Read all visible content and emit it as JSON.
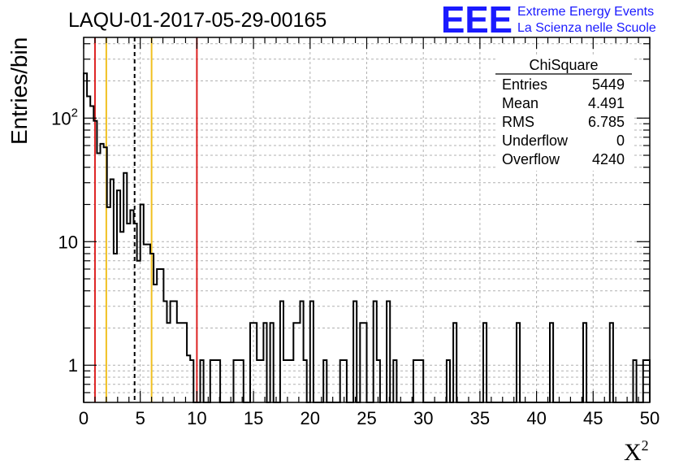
{
  "chart_data": {
    "type": "bar",
    "title": "LAQU-01-2017-05-29-00165",
    "xlabel": "X",
    "xlabel_superscript": "2",
    "ylabel": "Entries/bin",
    "xlim": [
      0,
      50
    ],
    "ylim": [
      0.5,
      450
    ],
    "yscale": "log",
    "grid": true,
    "bin_width": 1,
    "x_ticks": [
      "0",
      "5",
      "10",
      "15",
      "20",
      "25",
      "30",
      "35",
      "40",
      "45",
      "50"
    ],
    "y_ticks": [
      {
        "value": 1,
        "base": "1",
        "exp": ""
      },
      {
        "value": 10,
        "base": "10",
        "exp": ""
      },
      {
        "value": 100,
        "base": "10",
        "exp": "2"
      }
    ],
    "bin_values": [
      230,
      150,
      125,
      95,
      52,
      62,
      58,
      19,
      32,
      8,
      26,
      12,
      36,
      14,
      18,
      14,
      7,
      20,
      9.5,
      9.5,
      8,
      4.5,
      6,
      6,
      3.3,
      2.2,
      3.3,
      3.3,
      2.2,
      2.2,
      2.2,
      1.2,
      1.1,
      0.4,
      0.4,
      1.1,
      0.4,
      0.4,
      1.1,
      1.1,
      1.1,
      0.4,
      0.4,
      0.4,
      0.4,
      1.1,
      1.1,
      1.1,
      0.4,
      0.4,
      2.2,
      2.2,
      1.1,
      1.1,
      2.2,
      0.4,
      2.2,
      0.4,
      0.4,
      3.3,
      1.1,
      1.1,
      1.1,
      2.2,
      2.2,
      3.3,
      1.1,
      0.4,
      3.3,
      0.4,
      0.4,
      0.4,
      1.1,
      0.4,
      0.4,
      0.4,
      0.4,
      1.1,
      1.1,
      0.4,
      0.4,
      3.3,
      0.4,
      2.2,
      2.2,
      0.4,
      0.4,
      3.3,
      1.1,
      0.4,
      0.4,
      3.3,
      0.4,
      1.1,
      0.4,
      0.4,
      0.4,
      0.4,
      0.4,
      1.1,
      1.1,
      1.1,
      0.4,
      0.4,
      0.4,
      0.4,
      0.4,
      0.4,
      0.4,
      1.1,
      0.4,
      2.2,
      0.4,
      0.4,
      0.4,
      0.4,
      0.4,
      0.4,
      0.4,
      0.4,
      2.2,
      0.4,
      0.4,
      0.4,
      0.4,
      0.4,
      0.4,
      0.4,
      0.4,
      0.4,
      2.2,
      0.4,
      0.4,
      0.4,
      0.4,
      0.4,
      0.4,
      0.4,
      0.4,
      0.4,
      2.2,
      0.4,
      0.4,
      0.4,
      0.4,
      0.4,
      0.4,
      0.4,
      0.4,
      0.4,
      2.2,
      0.4,
      0.4,
      0.4,
      0.4,
      0.4,
      0.4,
      0.4,
      2.2,
      0.4,
      0.4,
      0.4,
      0.4,
      0.4,
      0.4,
      1.1,
      0.4,
      0.4,
      1.1,
      1.1
    ],
    "vertical_lines": [
      {
        "x": 1.0,
        "color": "#dd2222",
        "style": "solid"
      },
      {
        "x": 2.0,
        "color": "#f0c020",
        "style": "solid"
      },
      {
        "x": 4.5,
        "color": "#000000",
        "style": "dashed"
      },
      {
        "x": 6.0,
        "color": "#f0c020",
        "style": "solid"
      },
      {
        "x": 10.0,
        "color": "#dd2222",
        "style": "solid"
      }
    ],
    "line_color": "#000000",
    "grid_color": "#b0b0b0",
    "stats": {
      "title": "ChiSquare",
      "rows": [
        {
          "label": "Entries",
          "value": "5449"
        },
        {
          "label": "Mean",
          "value": "4.491"
        },
        {
          "label": "RMS",
          "value": "6.785"
        },
        {
          "label": "Underflow",
          "value": "0"
        },
        {
          "label": "Overflow",
          "value": "4240"
        }
      ]
    }
  },
  "branding": {
    "logo": "EEE",
    "line1": "Extreme Energy Events",
    "line2": "La Scienza nelle Scuole",
    "color": "#1a1aff"
  }
}
